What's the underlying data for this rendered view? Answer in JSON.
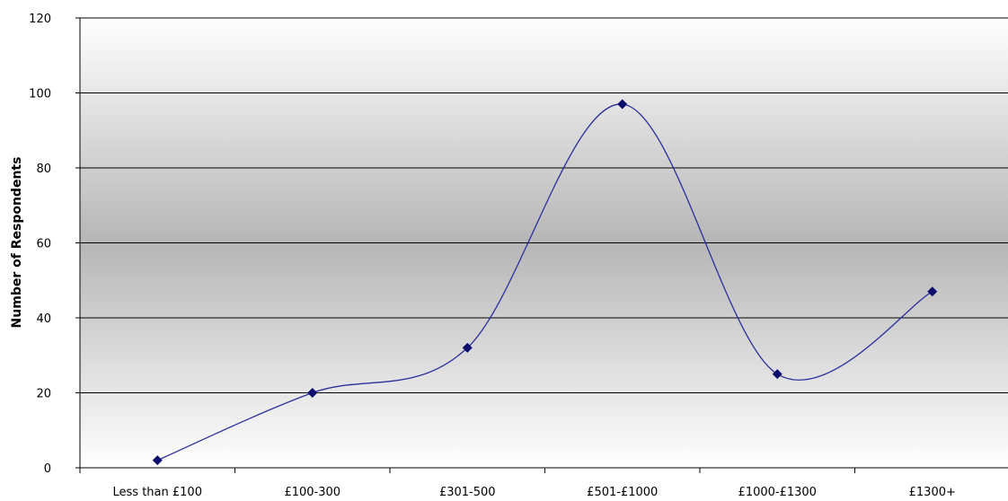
{
  "chart_data": {
    "type": "line",
    "smooth": true,
    "title": "",
    "xlabel": "",
    "ylabel": "Number of Respondents",
    "categories": [
      "Less than £100",
      "£100-300",
      "£301-500",
      "£501-£1000",
      "£1000-£1300",
      "£1300+"
    ],
    "values": [
      2,
      20,
      32,
      97,
      25,
      47
    ],
    "ylim": [
      0,
      120
    ],
    "yticks": [
      "0",
      "20",
      "40",
      "60",
      "80",
      "100",
      "120"
    ],
    "grid": true,
    "legend": "none",
    "colors": {
      "line": "#2b2f9c",
      "marker": "#0b0b6e",
      "gridline": "#000000",
      "plot_bg_edge": "#ffffff",
      "plot_bg_center": "#b6b6b6"
    }
  }
}
